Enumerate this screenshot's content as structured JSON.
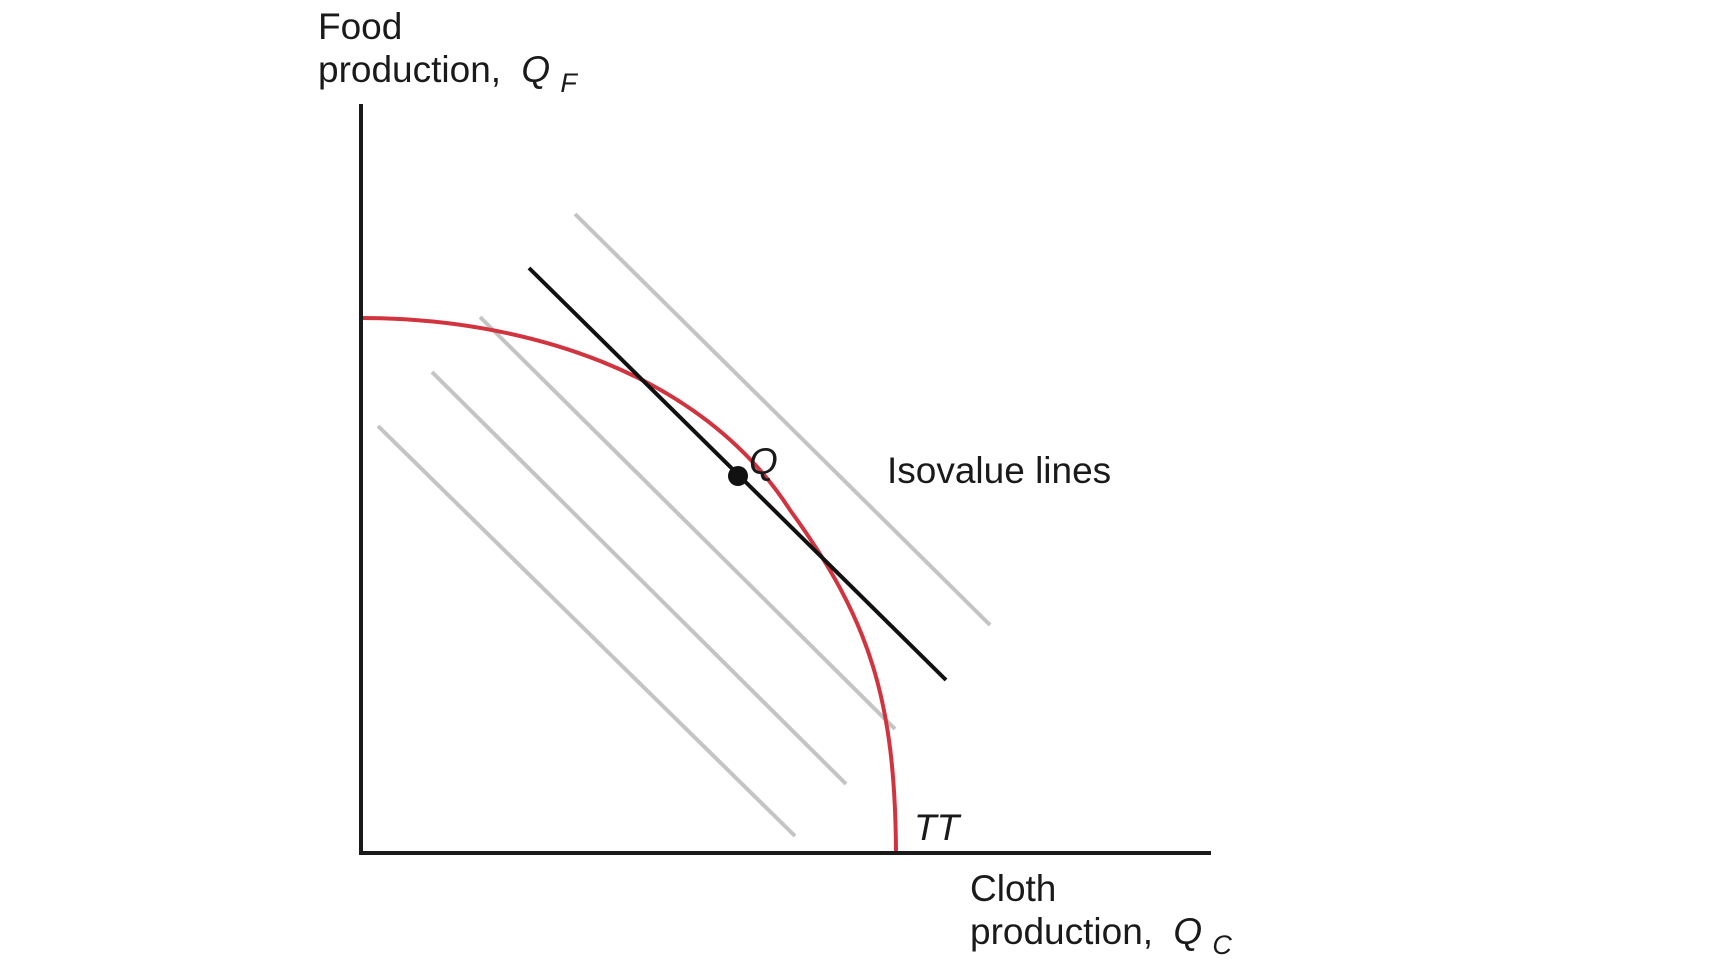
{
  "axes": {
    "y_label_line1": "Food",
    "y_label_line2": "production,",
    "y_var": "Q",
    "y_var_sub": "F",
    "x_label_line1": "Cloth",
    "x_label_line2": "production,",
    "x_var": "Q",
    "x_var_sub": "C"
  },
  "labels": {
    "isovalue": "Isovalue lines",
    "point": "Q",
    "curve": "TT"
  },
  "colors": {
    "axis": "#1a1a1a",
    "frontier": "#d2343f",
    "isovalue": "#c4c4c4",
    "tangent": "#111111",
    "point": "#111111"
  }
}
